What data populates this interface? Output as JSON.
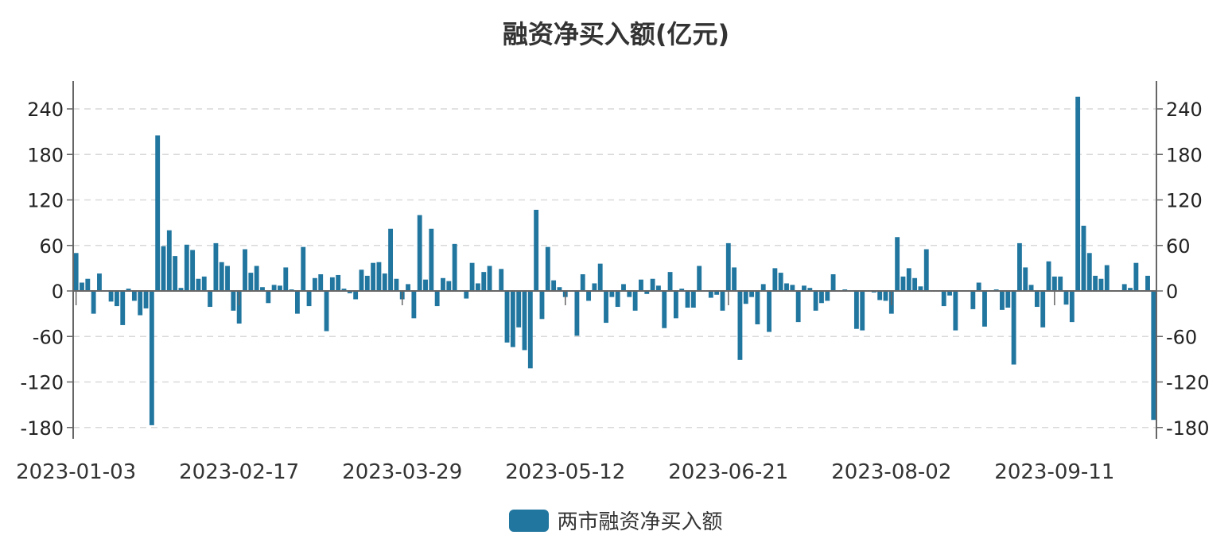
{
  "chart_data": {
    "type": "bar",
    "title": "融资净买入额(亿元)",
    "xlabel": "",
    "ylabel": "",
    "ylim": [
      -200,
      275
    ],
    "yticks": [
      240,
      180,
      120,
      60,
      0,
      -60,
      -120,
      -180
    ],
    "grid": true,
    "legend_position": "bottom",
    "x_tick_labels": [
      "2023-01-03",
      "2023-02-17",
      "2023-03-29",
      "2023-05-12",
      "2023-06-21",
      "2023-08-02",
      "2023-09-11"
    ],
    "x_tick_indices": [
      0,
      28,
      56,
      84,
      112,
      140,
      168
    ],
    "series": [
      {
        "name": "两市融资净买入额",
        "color": "#21769f",
        "values": [
          50,
          11,
          16,
          -30,
          23,
          -1,
          -14,
          -20,
          -45,
          3,
          -13,
          -32,
          -23,
          -177,
          205,
          59,
          80,
          46,
          4,
          61,
          54,
          16,
          19,
          -21,
          63,
          38,
          33,
          -26,
          -43,
          55,
          24,
          33,
          5,
          -16,
          8,
          7,
          31,
          2,
          -30,
          58,
          -20,
          17,
          22,
          -53,
          18,
          21,
          3,
          -3,
          -11,
          28,
          20,
          37,
          38,
          23,
          82,
          16,
          -11,
          9,
          -36,
          100,
          15,
          82,
          -20,
          17,
          13,
          62,
          -1,
          -10,
          37,
          10,
          25,
          33,
          -1,
          29,
          -68,
          -74,
          -48,
          -78,
          -102,
          107,
          -37,
          58,
          14,
          5,
          -8,
          -1,
          -59,
          22,
          -13,
          10,
          36,
          -42,
          -8,
          -21,
          9,
          -8,
          -26,
          15,
          -4,
          16,
          7,
          -49,
          25,
          -36,
          3,
          -22,
          -22,
          33,
          -1,
          -9,
          -5,
          -26,
          63,
          31,
          -91,
          -17,
          -8,
          -44,
          9,
          -54,
          30,
          24,
          10,
          8,
          -41,
          7,
          4,
          -26,
          -16,
          -13,
          22,
          -1,
          2,
          -1,
          -50,
          -52,
          -1,
          -2,
          -12,
          -13,
          -30,
          71,
          19,
          30,
          17,
          6,
          55,
          -1,
          -1,
          -20,
          -6,
          -52,
          -1,
          -1,
          -24,
          11,
          -47,
          1,
          2,
          -25,
          -22,
          -97,
          63,
          31,
          8,
          -21,
          -48,
          39,
          19,
          19,
          -18,
          -41,
          256,
          86,
          50,
          20,
          16,
          34,
          1,
          1,
          9,
          4,
          37,
          -1,
          20,
          -170
        ]
      }
    ]
  },
  "title": "融资净买入额(亿元)",
  "legend": {
    "label": "两市融资净买入额",
    "color": "#21769f"
  },
  "axis": {
    "y_left_labels": [
      "240",
      "180",
      "120",
      "60",
      "0",
      "-60",
      "-120",
      "-180"
    ],
    "y_right_labels": [
      "240",
      "180",
      "120",
      "60",
      "0",
      "-60",
      "-120",
      "-180"
    ],
    "x_labels": [
      "2023-01-03",
      "2023-02-17",
      "2023-03-29",
      "2023-05-12",
      "2023-06-21",
      "2023-08-02",
      "2023-09-11"
    ]
  }
}
